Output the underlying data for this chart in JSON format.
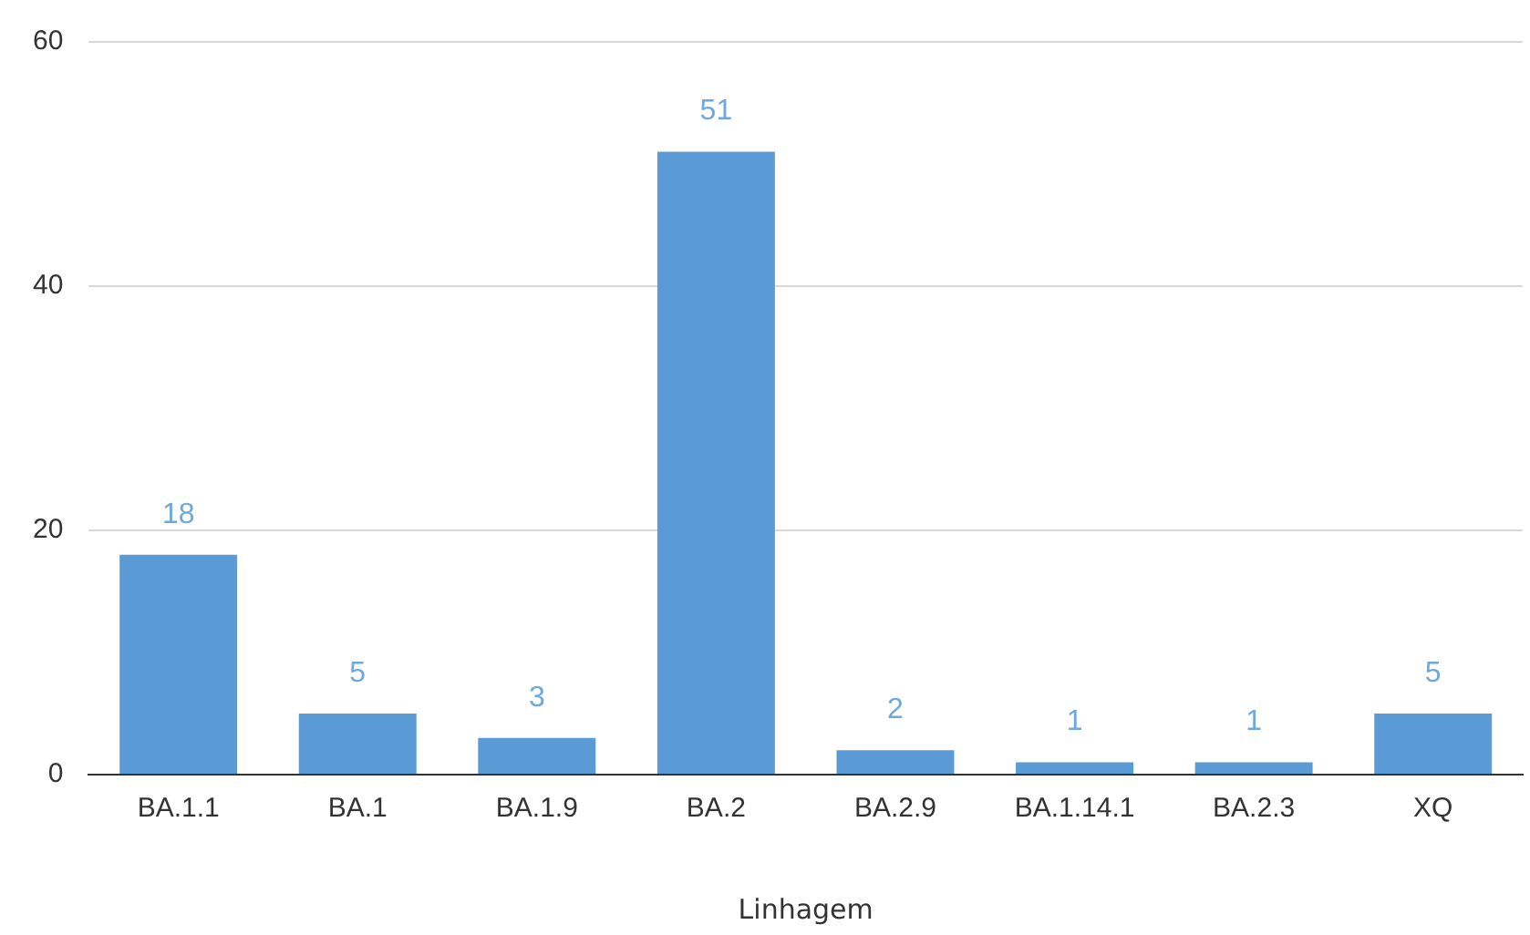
{
  "chart_data": {
    "type": "bar",
    "xlabel": "Linhagem",
    "categories": [
      "BA.1.1",
      "BA.1",
      "BA.1.9",
      "BA.2",
      "BA.2.9",
      "BA.1.14.1",
      "BA.2.3",
      "XQ"
    ],
    "values": [
      18,
      5,
      3,
      51,
      2,
      1,
      1,
      5
    ],
    "color": "#5b9bd5",
    "ylim": [
      0,
      60
    ],
    "yticks": [
      0,
      20,
      40,
      60
    ],
    "grid": "y",
    "data_labels": true,
    "legend": false
  }
}
